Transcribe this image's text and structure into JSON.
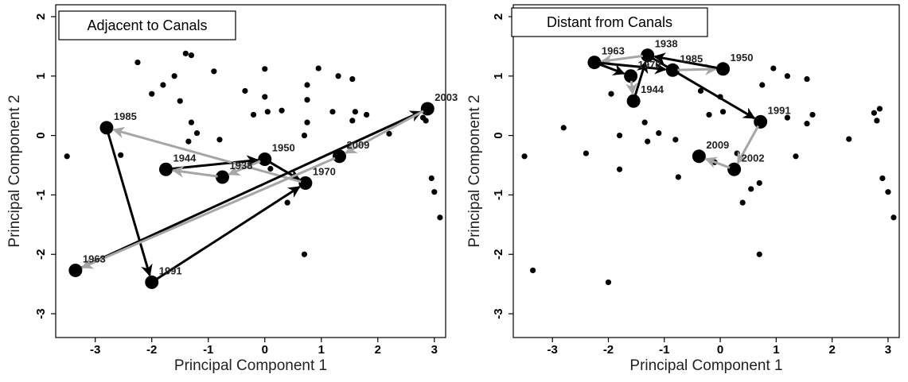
{
  "colors": {
    "black": "#000000",
    "gray": "#a6a6a6",
    "point": "#000000"
  },
  "chart_data": [
    {
      "type": "scatter",
      "title": "Adjacent to Canals",
      "xlabel": "Principal Component 1",
      "ylabel": "Principal Component 2",
      "xlim": [
        -3.7,
        3.2
      ],
      "ylim": [
        -3.4,
        2.2
      ],
      "xticks": [
        -3,
        -2,
        -1,
        0,
        1,
        2,
        3
      ],
      "yticks": [
        -3,
        -2,
        -1,
        0,
        1,
        2
      ],
      "xtick_labels": [
        "-3",
        "-2",
        "-1",
        "0",
        "1",
        "2",
        "3"
      ],
      "ytick_labels": [
        "-3",
        "-2",
        "-1",
        "0",
        "1",
        "2"
      ],
      "background_points": [
        [
          -3.5,
          -0.35
        ],
        [
          -2.25,
          1.23
        ],
        [
          -2.0,
          0.7
        ],
        [
          -1.6,
          1.0
        ],
        [
          -1.8,
          0.85
        ],
        [
          -1.5,
          0.58
        ],
        [
          -1.4,
          1.38
        ],
        [
          -1.3,
          1.35
        ],
        [
          -1.3,
          0.22
        ],
        [
          -1.2,
          0.04
        ],
        [
          -1.35,
          -0.1
        ],
        [
          -0.9,
          1.08
        ],
        [
          -0.8,
          -0.07
        ],
        [
          -0.35,
          0.75
        ],
        [
          -0.2,
          0.35
        ],
        [
          0.0,
          1.12
        ],
        [
          0.0,
          0.65
        ],
        [
          0.05,
          0.4
        ],
        [
          0.3,
          0.42
        ],
        [
          0.75,
          0.85
        ],
        [
          0.75,
          0.6
        ],
        [
          0.75,
          0.22
        ],
        [
          0.7,
          0.0
        ],
        [
          0.95,
          1.13
        ],
        [
          1.3,
          1.0
        ],
        [
          1.55,
          0.95
        ],
        [
          1.2,
          0.4
        ],
        [
          1.55,
          0.25
        ],
        [
          1.6,
          0.4
        ],
        [
          1.8,
          0.35
        ],
        [
          2.2,
          0.03
        ],
        [
          0.7,
          -2.0
        ],
        [
          0.4,
          -1.13
        ],
        [
          2.85,
          0.25
        ],
        [
          2.95,
          -0.72
        ],
        [
          3.0,
          -0.95
        ],
        [
          3.1,
          -1.38
        ],
        [
          0.1,
          -0.56
        ],
        [
          -2.55,
          -0.33
        ],
        [
          2.8,
          0.3
        ]
      ],
      "labeled_points": [
        {
          "label": "1985",
          "x": -2.8,
          "y": 0.13
        },
        {
          "label": "1944",
          "x": -1.75,
          "y": -0.57
        },
        {
          "label": "1950",
          "x": 0.0,
          "y": -0.4
        },
        {
          "label": "1970",
          "x": 0.72,
          "y": -0.8
        },
        {
          "label": "2009",
          "x": 1.32,
          "y": -0.35
        },
        {
          "label": "2003",
          "x": 2.88,
          "y": 0.45
        },
        {
          "label": "1963",
          "x": -3.35,
          "y": -2.27
        },
        {
          "label": "1991",
          "x": -2.0,
          "y": -2.47
        },
        {
          "label": "1938",
          "x": -0.75,
          "y": -0.7
        }
      ],
      "arrows": [
        {
          "from": "1944",
          "to": "1950",
          "color": "black"
        },
        {
          "from": "1950",
          "to": "1938",
          "color": "gray"
        },
        {
          "from": "1938",
          "to": "1944",
          "color": "gray"
        },
        {
          "from": "1950",
          "to": "1970",
          "color": "black"
        },
        {
          "from": "1970",
          "to": "1985",
          "color": "gray"
        },
        {
          "from": "1985",
          "to": "1991",
          "color": "black"
        },
        {
          "from": "1991",
          "to": "1970",
          "color": "black"
        },
        {
          "from": "1963",
          "to": "2003",
          "color": "black"
        },
        {
          "from": "2003",
          "to": "2009",
          "color": "gray"
        },
        {
          "from": "2009",
          "to": "1963",
          "color": "gray"
        }
      ]
    },
    {
      "type": "scatter",
      "title": "Distant from Canals",
      "xlabel": "Principal Component 1",
      "ylabel": "Principal Component 2",
      "xlim": [
        -3.7,
        3.2
      ],
      "ylim": [
        -3.4,
        2.2
      ],
      "xticks": [
        -3,
        -2,
        -1,
        0,
        1,
        2,
        3
      ],
      "yticks": [
        -3,
        -2,
        -1,
        0,
        1,
        2
      ],
      "xtick_labels": [
        "-3",
        "-2",
        "-1",
        "0",
        "1",
        "2",
        "3"
      ],
      "ytick_labels": [
        "-3",
        "-2",
        "-1",
        "0",
        "1",
        "2"
      ],
      "background_points": [
        [
          -3.5,
          -0.35
        ],
        [
          -3.35,
          -2.27
        ],
        [
          -2.8,
          0.13
        ],
        [
          -2.4,
          -0.3
        ],
        [
          -2.0,
          -2.47
        ],
        [
          -1.95,
          0.7
        ],
        [
          -1.8,
          0.0
        ],
        [
          -1.8,
          -0.57
        ],
        [
          -1.35,
          0.22
        ],
        [
          -1.3,
          -0.1
        ],
        [
          -1.1,
          0.04
        ],
        [
          -0.8,
          -0.07
        ],
        [
          -0.75,
          -0.7
        ],
        [
          -0.35,
          0.75
        ],
        [
          -0.2,
          0.35
        ],
        [
          0.0,
          0.65
        ],
        [
          0.05,
          0.4
        ],
        [
          -0.1,
          -0.45
        ],
        [
          0.3,
          -0.3
        ],
        [
          0.55,
          -0.9
        ],
        [
          0.4,
          -1.13
        ],
        [
          0.7,
          -0.8
        ],
        [
          0.7,
          -2.0
        ],
        [
          0.75,
          0.85
        ],
        [
          0.95,
          1.13
        ],
        [
          1.2,
          1.0
        ],
        [
          1.55,
          0.95
        ],
        [
          1.2,
          0.3
        ],
        [
          1.55,
          0.2
        ],
        [
          1.65,
          0.35
        ],
        [
          1.35,
          -0.35
        ],
        [
          2.3,
          -0.06
        ],
        [
          2.75,
          0.38
        ],
        [
          2.85,
          0.45
        ],
        [
          2.8,
          0.25
        ],
        [
          2.9,
          -0.72
        ],
        [
          3.0,
          -0.95
        ],
        [
          3.1,
          -1.38
        ]
      ],
      "labeled_points": [
        {
          "label": "1963",
          "x": -2.25,
          "y": 1.23
        },
        {
          "label": "1970",
          "x": -1.6,
          "y": 1.0
        },
        {
          "label": "1938",
          "x": -1.3,
          "y": 1.35
        },
        {
          "label": "1985",
          "x": -0.85,
          "y": 1.1
        },
        {
          "label": "1950",
          "x": 0.05,
          "y": 1.12
        },
        {
          "label": "1944",
          "x": -1.55,
          "y": 0.58
        },
        {
          "label": "1991",
          "x": 0.72,
          "y": 0.23
        },
        {
          "label": "2009",
          "x": -0.38,
          "y": -0.35
        },
        {
          "label": "2002",
          "x": 0.25,
          "y": -0.57
        }
      ],
      "arrows": [
        {
          "from": "1963",
          "to": "1970",
          "color": "black"
        },
        {
          "from": "1970",
          "to": "1944",
          "color": "gray"
        },
        {
          "from": "1944",
          "to": "1938",
          "color": "black"
        },
        {
          "from": "1938",
          "to": "1963",
          "color": "gray"
        },
        {
          "from": "1963",
          "to": "1985",
          "color": "black"
        },
        {
          "from": "1985",
          "to": "1950",
          "color": "gray"
        },
        {
          "from": "1950",
          "to": "1938",
          "color": "black"
        },
        {
          "from": "1938",
          "to": "1991",
          "color": "black"
        },
        {
          "from": "1991",
          "to": "2002",
          "color": "gray"
        },
        {
          "from": "2002",
          "to": "2009",
          "color": "gray"
        }
      ]
    }
  ]
}
